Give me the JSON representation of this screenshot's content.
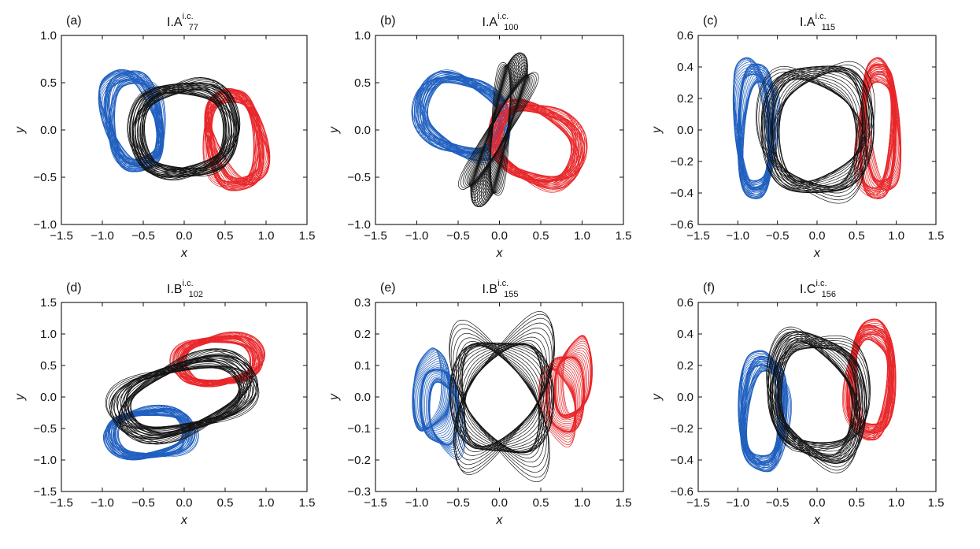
{
  "colors": {
    "blue": "#1f5fbf",
    "red": "#e8272a",
    "black": "#141414"
  },
  "chart_data": [
    {
      "type": "line",
      "panel_label": "(a)",
      "title_base": "I.A",
      "title_sup": "i.c.",
      "title_sub": "77",
      "xlabel": "x",
      "ylabel": "y",
      "xlim": [
        -1.5,
        1.5
      ],
      "ylim": [
        -1.0,
        1.0
      ],
      "xticks": [
        -1.5,
        -1.0,
        -0.5,
        0.0,
        0.5,
        1.0,
        1.5
      ],
      "xtick_labels": [
        "−1.5",
        "−1.0",
        "−0.5",
        "0.0",
        "0.5",
        "1.0",
        "1.5"
      ],
      "yticks": [
        -1.0,
        -0.5,
        0.0,
        0.5,
        1.0
      ],
      "ytick_labels": [
        "−1.0",
        "−0.5",
        "0.0",
        "0.5",
        "1.0"
      ],
      "series": [
        {
          "color": "blue",
          "cx": -0.62,
          "cy": 0.1,
          "rx": 0.3,
          "ry": 0.56,
          "spread": 0.3,
          "n": 42,
          "rot": 0.25
        },
        {
          "color": "red",
          "cx": 0.62,
          "cy": -0.1,
          "rx": 0.3,
          "ry": 0.56,
          "spread": 0.3,
          "n": 42,
          "rot": 0.25
        },
        {
          "color": "black",
          "cx": 0.0,
          "cy": 0.0,
          "rx": 0.58,
          "ry": 0.52,
          "spread": 0.1,
          "n": 36,
          "rot": 0.1
        }
      ]
    },
    {
      "type": "line",
      "panel_label": "(b)",
      "title_base": "I.A",
      "title_sup": "i.c.",
      "title_sub": "100",
      "xlabel": "x",
      "ylabel": "y",
      "xlim": [
        -1.5,
        1.5
      ],
      "ylim": [
        -1.0,
        1.0
      ],
      "xticks": [
        -1.5,
        -1.0,
        -0.5,
        0.0,
        0.5,
        1.0,
        1.5
      ],
      "xtick_labels": [
        "−1.5",
        "−1.0",
        "−0.5",
        "0.0",
        "0.5",
        "1.0",
        "1.5"
      ],
      "yticks": [
        -1.0,
        -0.5,
        0.0,
        0.5,
        1.0
      ],
      "ytick_labels": [
        "−1.0",
        "−0.5",
        "0.0",
        "0.5",
        "1.0"
      ],
      "series": [
        {
          "color": "blue",
          "cx": -0.45,
          "cy": 0.15,
          "rx": 0.52,
          "ry": 0.42,
          "spread": 0.1,
          "n": 40,
          "rot": -0.35
        },
        {
          "color": "red",
          "cx": 0.45,
          "cy": -0.15,
          "rx": 0.52,
          "ry": 0.42,
          "spread": 0.1,
          "n": 40,
          "rot": -0.35
        },
        {
          "color": "black",
          "cx": 0.0,
          "cy": 0.0,
          "rx": 0.1,
          "ry": 0.9,
          "spread": 0.08,
          "n": 30,
          "rot": -0.35
        }
      ]
    },
    {
      "type": "line",
      "panel_label": "(c)",
      "title_base": "I.A",
      "title_sup": "i.c.",
      "title_sub": "115",
      "xlabel": "x",
      "ylabel": "y",
      "xlim": [
        -1.5,
        1.5
      ],
      "ylim": [
        -0.6,
        0.6
      ],
      "xticks": [
        -1.5,
        -1.0,
        -0.5,
        0.0,
        0.5,
        1.0,
        1.5
      ],
      "xtick_labels": [
        "−1.5",
        "−1.0",
        "−0.5",
        "0.0",
        "0.5",
        "1.0",
        "1.5"
      ],
      "yticks": [
        -0.6,
        -0.4,
        -0.2,
        0.0,
        0.2,
        0.4,
        0.6
      ],
      "ytick_labels": [
        "−0.6",
        "−0.4",
        "−0.2",
        "0.0",
        "0.2",
        "0.4",
        "0.6"
      ],
      "series": [
        {
          "color": "blue",
          "cx": -0.78,
          "cy": 0.0,
          "rx": 0.2,
          "ry": 0.45,
          "spread": 0.35,
          "n": 40,
          "rot": 0.0
        },
        {
          "color": "red",
          "cx": 0.78,
          "cy": 0.0,
          "rx": 0.2,
          "ry": 0.45,
          "spread": 0.35,
          "n": 40,
          "rot": 0.0
        },
        {
          "color": "black",
          "cx": 0.0,
          "cy": 0.0,
          "rx": 0.62,
          "ry": 0.42,
          "spread": 0.25,
          "n": 30,
          "rot": 0.0
        }
      ]
    },
    {
      "type": "line",
      "panel_label": "(d)",
      "title_base": "I.B",
      "title_sup": "i.c.",
      "title_sub": "102",
      "xlabel": "x",
      "ylabel": "y",
      "xlim": [
        -1.5,
        1.5
      ],
      "ylim": [
        -1.5,
        1.5
      ],
      "xticks": [
        -1.5,
        -1.0,
        -0.5,
        0.0,
        0.5,
        1.0,
        1.5
      ],
      "xtick_labels": [
        "−1.5",
        "−1.0",
        "−0.5",
        "0.0",
        "0.5",
        "1.0",
        "1.5"
      ],
      "yticks": [
        -1.5,
        -1.0,
        -0.5,
        0.0,
        0.5,
        1.0,
        1.5
      ],
      "ytick_labels": [
        "−1.5",
        "−1.0",
        "−0.5",
        "0.0",
        "0.5",
        "1.0",
        "1.5"
      ],
      "series": [
        {
          "color": "blue",
          "cx": -0.42,
          "cy": -0.58,
          "rx": 0.48,
          "ry": 0.4,
          "spread": 0.15,
          "n": 38,
          "rot": 0.2
        },
        {
          "color": "red",
          "cx": 0.42,
          "cy": 0.58,
          "rx": 0.48,
          "ry": 0.4,
          "spread": 0.15,
          "n": 38,
          "rot": 0.2
        },
        {
          "color": "black",
          "cx": 0.0,
          "cy": 0.0,
          "rx": 0.82,
          "ry": 0.55,
          "spread": 0.08,
          "n": 36,
          "rot": 0.45
        }
      ]
    },
    {
      "type": "line",
      "panel_label": "(e)",
      "title_base": "I.B",
      "title_sup": "i.c.",
      "title_sub": "155",
      "xlabel": "x",
      "ylabel": "y",
      "xlim": [
        -1.5,
        1.5
      ],
      "ylim": [
        -0.3,
        0.3
      ],
      "xticks": [
        -1.5,
        -1.0,
        -0.5,
        0.0,
        0.5,
        1.0,
        1.5
      ],
      "xtick_labels": [
        "−1.5",
        "−1.0",
        "−0.5",
        "0.0",
        "0.5",
        "1.0",
        "1.5"
      ],
      "yticks": [
        -0.3,
        -0.2,
        -0.1,
        0.0,
        0.1,
        0.2,
        0.3
      ],
      "ytick_labels": [
        "−0.3",
        "−0.2",
        "−0.1",
        "0.0",
        "0.1",
        "0.2",
        "0.3"
      ],
      "series": [
        {
          "color": "blue",
          "cx": -0.75,
          "cy": -0.02,
          "rx": 0.2,
          "ry": 0.12,
          "spread": 0.4,
          "n": 40,
          "rot": 0.0
        },
        {
          "color": "red",
          "cx": 0.82,
          "cy": 0.02,
          "rx": 0.2,
          "ry": 0.12,
          "spread": 0.4,
          "n": 40,
          "rot": 0.0
        },
        {
          "color": "black",
          "cx": 0.03,
          "cy": 0.0,
          "rx": 0.55,
          "ry": 0.18,
          "spread": 0.1,
          "n": 34,
          "rot": 0.0
        }
      ]
    },
    {
      "type": "line",
      "panel_label": "(f)",
      "title_base": "I.C",
      "title_sup": "i.c.",
      "title_sub": "156",
      "xlabel": "x",
      "ylabel": "y",
      "xlim": [
        -1.5,
        1.5
      ],
      "ylim": [
        -0.6,
        0.6
      ],
      "xticks": [
        -1.5,
        -1.0,
        -0.5,
        0.0,
        0.5,
        1.0,
        1.5
      ],
      "xtick_labels": [
        "−1.5",
        "−1.0",
        "−0.5",
        "0.0",
        "0.5",
        "1.0",
        "1.5"
      ],
      "yticks": [
        -0.6,
        -0.4,
        -0.2,
        0.0,
        0.2,
        0.4,
        0.6
      ],
      "ytick_labels": [
        "−0.6",
        "−0.4",
        "−0.2",
        "0.0",
        "0.2",
        "0.4",
        "0.6"
      ],
      "series": [
        {
          "color": "blue",
          "cx": -0.68,
          "cy": -0.1,
          "rx": 0.25,
          "ry": 0.38,
          "spread": 0.3,
          "n": 40,
          "rot": -0.15
        },
        {
          "color": "red",
          "cx": 0.68,
          "cy": 0.1,
          "rx": 0.25,
          "ry": 0.38,
          "spread": 0.3,
          "n": 40,
          "rot": -0.15
        },
        {
          "color": "black",
          "cx": 0.0,
          "cy": 0.0,
          "rx": 0.55,
          "ry": 0.4,
          "spread": 0.15,
          "n": 34,
          "rot": -0.2
        }
      ]
    }
  ]
}
